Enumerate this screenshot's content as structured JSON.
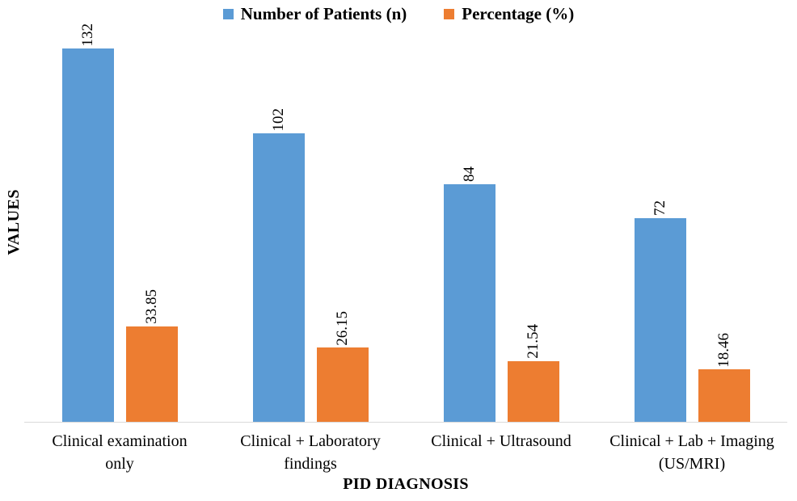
{
  "chart_data": {
    "type": "bar",
    "title": "",
    "xlabel": "PID DIAGNOSIS",
    "ylabel": "VALUES",
    "categories": [
      "Clinical examination only",
      "Clinical + Laboratory findings",
      "Clinical + Ultrasound",
      "Clinical + Lab + Imaging (US/MRI)"
    ],
    "categories_display": [
      [
        "Clinical examination",
        "only"
      ],
      [
        "Clinical + Laboratory",
        "findings"
      ],
      [
        "Clinical + Ultrasound"
      ],
      [
        "Clinical + Lab + Imaging",
        "(US/MRI)"
      ]
    ],
    "series": [
      {
        "name": "Number of Patients (n)",
        "color": "#5B9BD5",
        "values": [
          132,
          102,
          84,
          72
        ],
        "labels": [
          "132",
          "102",
          "84",
          "72"
        ]
      },
      {
        "name": "Percentage (%)",
        "color": "#ED7D31",
        "values": [
          33.85,
          26.15,
          21.54,
          18.46
        ],
        "labels": [
          "33.85",
          "26.15",
          "21.54",
          "18.46"
        ]
      }
    ],
    "ylim": [
      0,
      140
    ],
    "grid": false,
    "legend_position": "top",
    "data_label_rotation": 90,
    "axis_line_color": "#D9D9D9",
    "y_axis_ticks_visible": false
  }
}
